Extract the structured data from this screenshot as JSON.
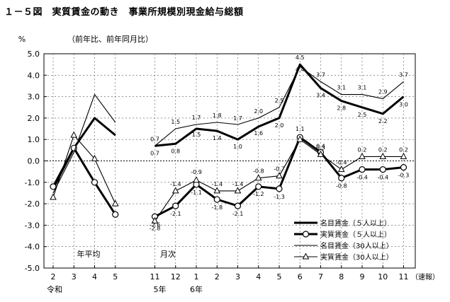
{
  "figure_title": "１－５図　実質賃金の動き　事業所規模別現金給与総額",
  "chart_data": {
    "type": "line",
    "y_unit": "%",
    "y_note": "（前年比、前年同月比）",
    "ylim": [
      -5.0,
      5.0
    ],
    "yticks": [
      "5.0",
      "4.0",
      "3.0",
      "2.0",
      "1.0",
      "0.0",
      "-1.0",
      "-2.0",
      "-3.0",
      "-4.0",
      "-5.0"
    ],
    "x_tick_labels": [
      "2",
      "3",
      "4",
      "5",
      "11",
      "12",
      "1",
      "2",
      "3",
      "4",
      "5",
      "6",
      "7",
      "8",
      "9",
      "10",
      "11"
    ],
    "x_suffix": "（速報）",
    "x_era_labels": [
      "令和",
      "5年",
      "6年"
    ],
    "section_labels": [
      "年平均",
      "月次"
    ],
    "segments": [
      [
        0,
        3
      ],
      [
        4,
        16
      ]
    ],
    "legend_position": "bottom-right",
    "series": [
      {
        "name": "名目賃金（５人以上）",
        "style": "thick",
        "marker": "none",
        "values": [
          -1.3,
          0.6,
          2.0,
          1.2,
          0.7,
          0.8,
          1.5,
          1.4,
          1.0,
          1.6,
          2.0,
          4.5,
          3.4,
          2.8,
          2.5,
          2.2,
          3.0
        ],
        "data_labels": [
          "",
          "",
          "",
          "",
          "0.7",
          "0.8",
          "1.5",
          "1.4",
          "1.0",
          "1.6",
          "2.0",
          "4.5",
          "3.4",
          "2.8",
          "2.5",
          "2.2",
          "3.0"
        ]
      },
      {
        "name": "実質賃金（５人以上）",
        "style": "thick",
        "marker": "circle",
        "values": [
          -1.2,
          0.6,
          -1.0,
          -2.5,
          -2.6,
          -2.1,
          -1.1,
          -1.8,
          -2.1,
          -1.2,
          -1.3,
          1.1,
          0.4,
          -0.8,
          -0.4,
          -0.4,
          -0.3
        ],
        "data_labels": [
          "",
          "",
          "",
          "",
          "-2.6",
          "-2.1",
          "-1.1",
          "-1.8",
          "-2.1",
          "-1.2",
          "-1.3",
          "1.1",
          "0.4",
          "-0.8",
          "-0.4",
          "-0.4",
          "-0.3"
        ]
      },
      {
        "name": "名目賃金（30人以上）",
        "style": "thin",
        "marker": "none",
        "values": [
          -1.5,
          0.4,
          3.1,
          1.8,
          0.7,
          1.5,
          1.7,
          1.8,
          1.7,
          2.0,
          2.5,
          4.4,
          3.7,
          3.1,
          3.1,
          2.9,
          3.7
        ],
        "data_labels": [
          "",
          "",
          "",
          "",
          "0.7",
          "1.5",
          "1.7",
          "1.8",
          "1.7",
          "2.0",
          "2.5",
          "4.4",
          "3.7",
          "3.1",
          "3.1",
          "2.9",
          "3.7"
        ]
      },
      {
        "name": "実質賃金（30人以上）",
        "style": "thin",
        "marker": "triangle",
        "values": [
          -1.7,
          1.2,
          0.1,
          -2.0,
          -2.8,
          -1.4,
          -0.9,
          -1.4,
          -1.4,
          -0.8,
          -0.7,
          1.0,
          0.3,
          -0.4,
          0.2,
          0.2,
          0.2
        ],
        "data_labels": [
          "",
          "",
          "",
          "",
          "-2.8",
          "-1.4",
          "-0.9",
          "-1.4",
          "-1.4",
          "-0.8",
          "-0.7",
          "",
          "0.3",
          "-0.4",
          "0.2",
          "0.2",
          "0.2"
        ]
      }
    ]
  }
}
